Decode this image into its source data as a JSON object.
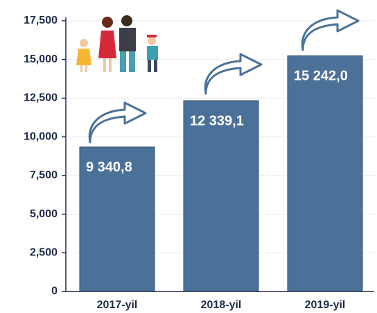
{
  "chart_data": {
    "type": "bar",
    "categories": [
      "2017-yil",
      "2018-yil",
      "2019-yil"
    ],
    "values": [
      9340.8,
      12339.1,
      15242.0
    ],
    "value_labels": [
      "9 340,8",
      "12 339,1",
      "15 242,0"
    ],
    "color": "#4b7199",
    "ylim": [
      0,
      17500
    ],
    "yticks": [
      0,
      {
        "value": 2500,
        "label": "2,500"
      },
      {
        "value": 5000,
        "label": "5,000"
      },
      {
        "value": 7500,
        "label": "7,500"
      },
      {
        "value": 10000,
        "label": "10,000"
      },
      {
        "value": 12500,
        "label": "12,500"
      },
      {
        "value": 15000,
        "label": "15,000"
      },
      {
        "value": 17500,
        "label": "17,500"
      }
    ],
    "grid": true
  }
}
